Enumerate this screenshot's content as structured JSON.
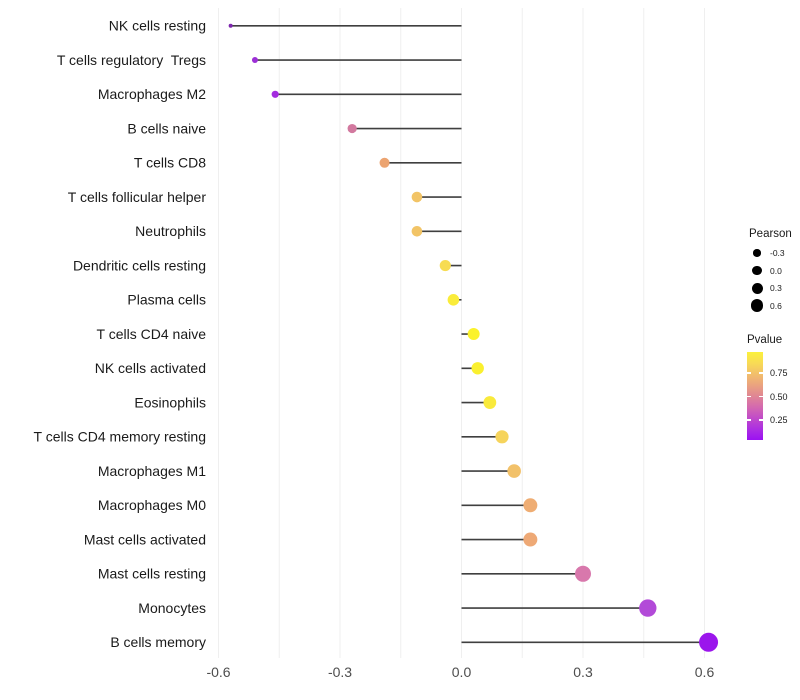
{
  "chart_data": {
    "type": "scatter",
    "variant": "lollipop",
    "title": "",
    "xlabel": "",
    "ylabel": "",
    "xlim": [
      -0.62,
      0.63
    ],
    "xticks": [
      -0.6,
      -0.3,
      0.0,
      0.3,
      0.6
    ],
    "xtick_labels": [
      "-0.6",
      "-0.3",
      "0.0",
      "0.3",
      "0.6"
    ],
    "minor_xticks": [
      -0.45,
      -0.15,
      0.15,
      0.45
    ],
    "grid": "vertical-only",
    "categories": [
      "NK cells resting",
      "T cells regulatory  Tregs",
      "Macrophages M2",
      "B cells naive",
      "T cells CD8",
      "T cells follicular helper",
      "Neutrophils",
      "Dendritic cells resting",
      "Plasma cells",
      "T cells CD4 naive",
      "NK cells activated",
      "Eosinophils",
      "T cells CD4 memory resting",
      "Macrophages M1",
      "Macrophages M0",
      "Mast cells activated",
      "Mast cells resting",
      "Monocytes",
      "B cells memory"
    ],
    "points": [
      {
        "label": "NK cells resting",
        "pearson": -0.57,
        "color": "#7D26AD",
        "size": 2.0
      },
      {
        "label": "T cells regulatory  Tregs",
        "pearson": -0.51,
        "color": "#9C2FD6",
        "size": 3.0
      },
      {
        "label": "Macrophages M2",
        "pearson": -0.46,
        "color": "#A32BDF",
        "size": 3.6
      },
      {
        "label": "B cells naive",
        "pearson": -0.27,
        "color": "#D2799F",
        "size": 4.6
      },
      {
        "label": "T cells CD8",
        "pearson": -0.19,
        "color": "#ECA471",
        "size": 5.0
      },
      {
        "label": "T cells follicular helper",
        "pearson": -0.11,
        "color": "#F2C466",
        "size": 5.3
      },
      {
        "label": "Neutrophils",
        "pearson": -0.11,
        "color": "#F2C466",
        "size": 5.3
      },
      {
        "label": "Dendritic cells resting",
        "pearson": -0.04,
        "color": "#F7DC52",
        "size": 5.6
      },
      {
        "label": "Plasma cells",
        "pearson": -0.02,
        "color": "#FAEC3A",
        "size": 5.8
      },
      {
        "label": "T cells CD4 naive",
        "pearson": 0.03,
        "color": "#FBF22B",
        "size": 6.0
      },
      {
        "label": "NK cells activated",
        "pearson": 0.04,
        "color": "#FAF02F",
        "size": 6.2
      },
      {
        "label": "Eosinophils",
        "pearson": 0.07,
        "color": "#F9EA3C",
        "size": 6.4
      },
      {
        "label": "T cells CD4 memory resting",
        "pearson": 0.1,
        "color": "#F6D45C",
        "size": 6.6
      },
      {
        "label": "Macrophages M1",
        "pearson": 0.13,
        "color": "#F2C169",
        "size": 6.8
      },
      {
        "label": "Macrophages M0",
        "pearson": 0.17,
        "color": "#EFAD73",
        "size": 7.0
      },
      {
        "label": "Mast cells activated",
        "pearson": 0.17,
        "color": "#EEA976",
        "size": 7.0
      },
      {
        "label": "Mast cells resting",
        "pearson": 0.3,
        "color": "#D878AC",
        "size": 8.0
      },
      {
        "label": "Monocytes",
        "pearson": 0.46,
        "color": "#B24AD8",
        "size": 8.7
      },
      {
        "label": "B cells memory",
        "pearson": 0.61,
        "color": "#9B15EC",
        "size": 9.5
      }
    ]
  },
  "legend": {
    "pearson": {
      "title": "Pearson",
      "items": [
        {
          "label": "-0.3",
          "r": 3.7
        },
        {
          "label": "0.0",
          "r": 4.7
        },
        {
          "label": "0.3",
          "r": 5.5
        },
        {
          "label": "0.6",
          "r": 6.3
        }
      ]
    },
    "pvalue": {
      "title": "Pvalue",
      "labels": [
        "0.75",
        "0.50",
        "0.25"
      ],
      "gradient_top_to_bottom": [
        "#FBF13C",
        "#F8DB55",
        "#F2BF6B",
        "#EBA37F",
        "#E08694",
        "#D469AF",
        "#C14BC9",
        "#AC2FE2",
        "#9B11F2"
      ]
    }
  },
  "colors": {
    "line": "#3F3F3F",
    "grid": "#EFEFEF",
    "axis_text": "#4D4D4D",
    "label_text": "#1A1A1A",
    "legend_dot": "#000000",
    "background": "#FFFFFF"
  }
}
